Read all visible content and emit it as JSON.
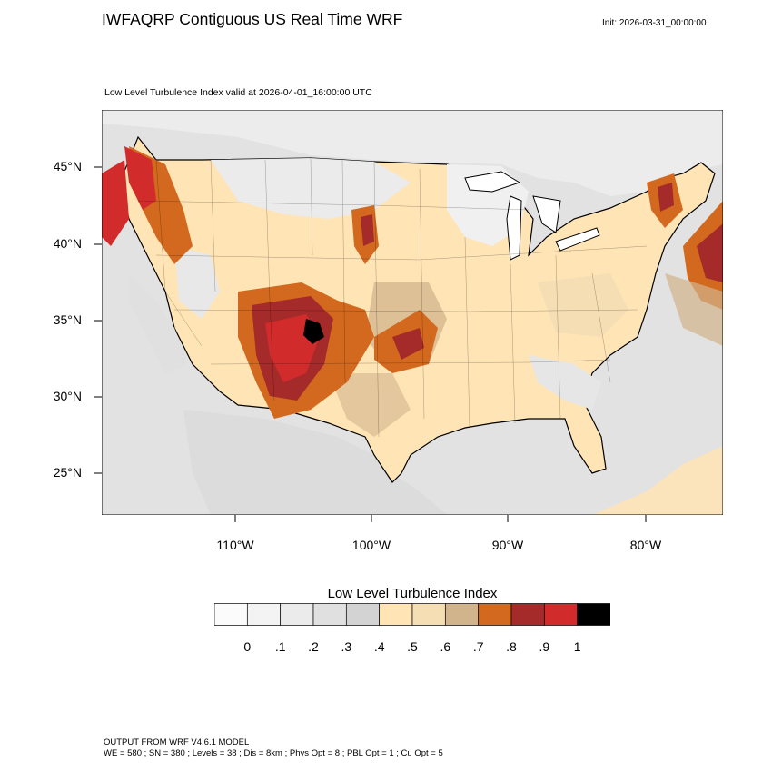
{
  "header": {
    "title": "IWFAQRP Contiguous US Real Time WRF",
    "init": "Init: 2026-03-31_00:00:00",
    "subtitle": "Low Level Turbulence Index valid at 2026-04-01_16:00:00 UTC"
  },
  "map": {
    "region": "Contiguous United States",
    "lat_labels": [
      "45°N",
      "40°N",
      "35°N",
      "30°N",
      "25°N"
    ],
    "lon_labels": [
      "110°W",
      "100°W",
      "90°W",
      "80°W"
    ],
    "water_color": "#e2e2e2",
    "land_base_color": "#ffe4b5"
  },
  "legend": {
    "title": "Low Level Turbulence Index",
    "tick_labels": [
      "0",
      ".1",
      ".2",
      ".3",
      ".4",
      ".5",
      ".6",
      ".7",
      ".8",
      ".9",
      "1"
    ],
    "colors": [
      "#fbfbfb",
      "#f3f3f3",
      "#ebebeb",
      "#e0e0e0",
      "#d3d3d3",
      "#ffe4b5",
      "#f5deb3",
      "#d2b48c",
      "#d2691e",
      "#a52a2a",
      "#d22b2b",
      "#000000"
    ]
  },
  "footer": {
    "line1": "OUTPUT FROM WRF V4.6.1 MODEL",
    "line2": "WE = 580 ; SN = 380 ; Levels = 38 ; Dis = 8km ; Phys Opt = 8 ; PBL Opt = 1 ; Cu Opt = 5"
  }
}
